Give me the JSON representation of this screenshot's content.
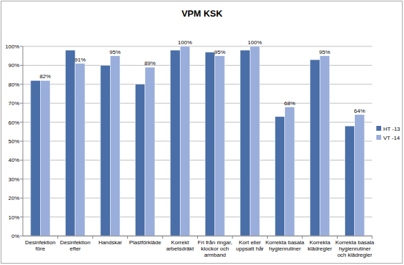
{
  "chart_data": {
    "type": "bar",
    "title": "VPM KSK",
    "categories": [
      "Desinfektion före",
      "Desinfektion efter",
      "Handskar",
      "Plastförkläde",
      "Korrekt arbetsdräkt",
      "Fri från ringar, klockor och armband",
      "Kort eller uppsatt hår",
      "Korrekta basala hygienrutiner",
      "Korrekta klädregler",
      "Korrekta basala hygienrutiner och klädregler"
    ],
    "series": [
      {
        "name": "HT -13",
        "color": "#4a6fa8",
        "values": [
          82,
          98,
          90,
          80,
          98,
          97,
          98,
          63,
          93,
          58
        ]
      },
      {
        "name": "VT -14",
        "color": "#9aaedb",
        "data_labels": true,
        "values": [
          82,
          91,
          95,
          89,
          100,
          95,
          100,
          68,
          95,
          64
        ],
        "value_labels": [
          "82%",
          "91%",
          "95%",
          "89%",
          "100%",
          "95%",
          "100%",
          "68%",
          "95%",
          "64%"
        ]
      }
    ],
    "ylim": [
      0,
      100
    ],
    "yticks": [
      {
        "value": 0,
        "label": "0%"
      },
      {
        "value": 10,
        "label": "10%"
      },
      {
        "value": 20,
        "label": "20%"
      },
      {
        "value": 30,
        "label": "30%"
      },
      {
        "value": 40,
        "label": "40%"
      },
      {
        "value": 50,
        "label": "50%"
      },
      {
        "value": 60,
        "label": "60%"
      },
      {
        "value": 70,
        "label": "70%"
      },
      {
        "value": 80,
        "label": "80%"
      },
      {
        "value": 90,
        "label": "90%"
      },
      {
        "value": 100,
        "label": "100%"
      }
    ],
    "grid": true,
    "legend": "right"
  }
}
